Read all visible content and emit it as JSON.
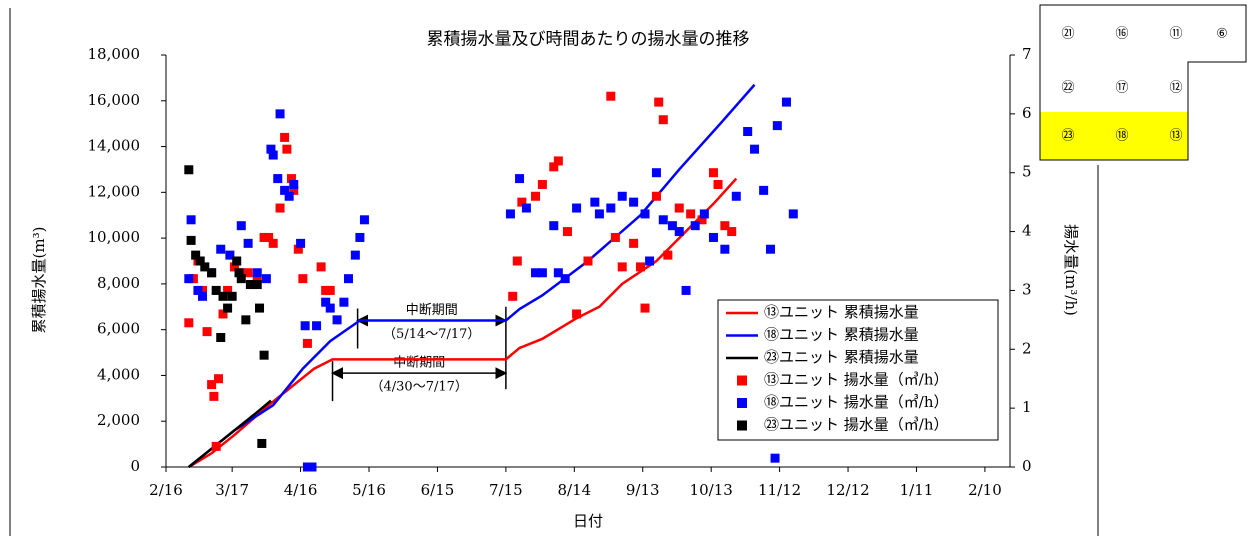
{
  "chart_data": {
    "type": "combo",
    "title": "累積揚水量及び時間あたりの揚水量の推移",
    "xlabel": "日付",
    "ylabel": "累積揚水量(m³)",
    "y2label": "揚水量(m³/h)",
    "xlim": [
      0,
      370
    ],
    "xticks": [
      {
        "value": 0,
        "label": "2/16"
      },
      {
        "value": 29,
        "label": "3/17"
      },
      {
        "value": 59,
        "label": "4/16"
      },
      {
        "value": 89,
        "label": "5/16"
      },
      {
        "value": 119,
        "label": "6/15"
      },
      {
        "value": 149,
        "label": "7/15"
      },
      {
        "value": 179,
        "label": "8/14"
      },
      {
        "value": 209,
        "label": "9/13"
      },
      {
        "value": 239,
        "label": "10/13"
      },
      {
        "value": 269,
        "label": "11/12"
      },
      {
        "value": 299,
        "label": "12/12"
      },
      {
        "value": 329,
        "label": "1/11"
      },
      {
        "value": 359,
        "label": "2/10"
      }
    ],
    "ylim": [
      0,
      18000
    ],
    "yticks": [
      0,
      {
        "value": 2000,
        "label": "2,000"
      },
      {
        "value": 4000,
        "label": "4,000"
      },
      {
        "value": 6000,
        "label": "6,000"
      },
      {
        "value": 8000,
        "label": "8,000"
      },
      {
        "value": 10000,
        "label": "10,000"
      },
      {
        "value": 12000,
        "label": "12,000"
      },
      {
        "value": 14000,
        "label": "14,000"
      },
      {
        "value": 16000,
        "label": "16,000"
      },
      {
        "value": 18000,
        "label": "18,000"
      }
    ],
    "y2lim": [
      0,
      7
    ],
    "y2ticks": [
      0,
      1,
      2,
      3,
      4,
      5,
      6,
      7
    ],
    "legend": "lower right",
    "series": [
      {
        "name": "⑬ユニット 累積揚水量",
        "type": "line",
        "color": "#ff0000",
        "x": [
          10,
          20,
          30,
          45,
          55,
          65,
          73,
          149,
          155,
          165,
          180,
          190,
          200,
          215,
          230,
          240,
          250
        ],
        "values": [
          0,
          600,
          1400,
          2700,
          3500,
          4300,
          4700,
          4700,
          5200,
          5600,
          6500,
          7000,
          8000,
          9000,
          10500,
          11500,
          12600
        ]
      },
      {
        "name": "⑱ユニット 累積揚水量",
        "type": "line",
        "color": "#0000ff",
        "x": [
          10,
          20,
          30,
          47,
          60,
          72,
          85,
          149,
          155,
          165,
          185,
          208,
          225,
          243,
          258
        ],
        "values": [
          0,
          800,
          1600,
          2700,
          4300,
          5500,
          6400,
          6400,
          6900,
          7500,
          9000,
          11000,
          13000,
          15000,
          16700
        ]
      },
      {
        "name": "㉓ユニット 累積揚水量",
        "type": "line",
        "color": "#000000",
        "x": [
          10,
          20,
          30,
          40,
          46
        ],
        "values": [
          0,
          800,
          1600,
          2400,
          2900
        ]
      },
      {
        "name": "⑬ユニット 揚水量（㎥/h）",
        "type": "scatter",
        "axis": "y2",
        "color": "#ff0000",
        "x": [
          10,
          12,
          14,
          16,
          18,
          20,
          21,
          22,
          23,
          25,
          27,
          30,
          33,
          36,
          40,
          43,
          45,
          47,
          50,
          52,
          53,
          55,
          56,
          58,
          60,
          62,
          68,
          70,
          72,
          152,
          154,
          156,
          162,
          165,
          170,
          172,
          176,
          180,
          185,
          195,
          197,
          200,
          205,
          208,
          210,
          215,
          216,
          218,
          220,
          225,
          230,
          235,
          240,
          242,
          245,
          248
        ],
        "values": [
          2.45,
          3.2,
          3.5,
          3.0,
          2.3,
          1.4,
          1.2,
          0.35,
          1.5,
          2.6,
          3.0,
          3.4,
          3.3,
          3.3,
          3.2,
          3.9,
          3.9,
          3.8,
          4.4,
          5.6,
          5.4,
          4.9,
          4.7,
          3.7,
          3.2,
          2.1,
          3.4,
          3.0,
          3.0,
          2.9,
          3.5,
          4.5,
          4.6,
          4.8,
          5.1,
          5.2,
          4.0,
          2.6,
          3.5,
          6.3,
          3.9,
          3.4,
          3.8,
          3.4,
          2.7,
          4.6,
          6.2,
          5.9,
          3.6,
          4.4,
          4.3,
          4.2,
          5.0,
          4.8,
          4.1,
          4.0
        ]
      },
      {
        "name": "⑱ユニット 揚水量（㎥/h）",
        "type": "scatter",
        "axis": "y2",
        "color": "#0000ff",
        "x": [
          10,
          11,
          14,
          16,
          20,
          24,
          28,
          33,
          36,
          40,
          44,
          46,
          47,
          49,
          50,
          52,
          54,
          56,
          59,
          61,
          62,
          64,
          66,
          70,
          72,
          75,
          78,
          80,
          83,
          85,
          87,
          151,
          155,
          158,
          162,
          165,
          170,
          172,
          175,
          180,
          188,
          190,
          195,
          200,
          205,
          210,
          212,
          215,
          218,
          222,
          225,
          228,
          232,
          236,
          240,
          245,
          250,
          255,
          258,
          262,
          265,
          267,
          268,
          272,
          275
        ],
        "values": [
          3.2,
          4.2,
          3.0,
          2.9,
          3.3,
          3.7,
          3.6,
          4.1,
          3.8,
          3.3,
          3.2,
          5.4,
          5.3,
          4.9,
          6.0,
          4.7,
          4.6,
          4.8,
          3.8,
          2.4,
          0.0,
          0.0,
          2.4,
          2.8,
          2.7,
          2.5,
          2.8,
          3.2,
          3.6,
          3.9,
          4.2,
          4.3,
          4.9,
          4.4,
          3.3,
          3.3,
          4.1,
          3.3,
          3.2,
          4.4,
          4.5,
          4.3,
          4.4,
          4.6,
          4.5,
          4.3,
          3.5,
          5.0,
          4.2,
          4.1,
          4.0,
          3.0,
          4.1,
          4.3,
          3.9,
          3.7,
          4.6,
          5.7,
          5.4,
          4.7,
          3.7,
          0.15,
          5.8,
          6.2,
          4.3
        ]
      },
      {
        "name": "㉓ユニット 揚水量（㎥/h）",
        "type": "scatter",
        "axis": "y2",
        "color": "#000000",
        "x": [
          10,
          11,
          13,
          15,
          17,
          20,
          22,
          24,
          25,
          27,
          29,
          31,
          32,
          33,
          35,
          37,
          40,
          41,
          42,
          43
        ],
        "values": [
          5.05,
          3.85,
          3.6,
          3.5,
          3.4,
          3.3,
          3.0,
          2.2,
          2.9,
          2.7,
          2.9,
          3.5,
          3.3,
          3.2,
          2.5,
          3.1,
          3.1,
          2.7,
          0.4,
          1.9
        ]
      }
    ],
    "annotations": [
      {
        "text": "中断期間",
        "sub": "（5/14～7/17）"
      },
      {
        "text": "中断期間",
        "sub": "（4/30～7/17）"
      }
    ]
  },
  "inset": {
    "rows": [
      [
        "㉑",
        "⑯",
        "⑪",
        "⑥"
      ],
      [
        "㉒",
        "⑰",
        "⑫"
      ],
      [
        "㉓",
        "⑱",
        "⑬"
      ]
    ]
  }
}
